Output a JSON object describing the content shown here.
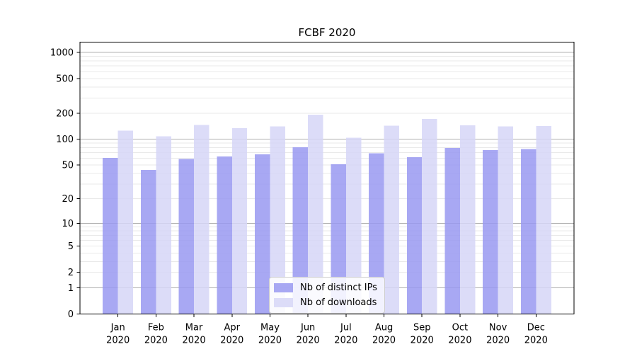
{
  "title": "FCBF 2020",
  "legend": {
    "items": [
      {
        "label": "Nb of distinct IPs"
      },
      {
        "label": "Nb of downloads"
      }
    ]
  },
  "chart_data": {
    "type": "bar",
    "title": "FCBF 2020",
    "categories": [
      "Jan",
      "Feb",
      "Mar",
      "Apr",
      "May",
      "Jun",
      "Jul",
      "Aug",
      "Sep",
      "Oct",
      "Nov",
      "Dec"
    ],
    "category_year": "2020",
    "series": [
      {
        "name": "Nb of distinct IPs",
        "color": "#9999f1",
        "values": [
          61,
          44,
          59,
          63,
          67,
          81,
          51,
          69,
          62,
          79,
          75,
          77
        ]
      },
      {
        "name": "Nb of downloads",
        "color": "#d6d6f7",
        "values": [
          126,
          108,
          146,
          134,
          141,
          193,
          104,
          143,
          172,
          145,
          141,
          142
        ]
      }
    ],
    "yscale": "log1p",
    "y_ticks": [
      0,
      1,
      2,
      5,
      10,
      20,
      50,
      100,
      200,
      500,
      1000
    ],
    "ylim": [
      0,
      1300
    ],
    "grid": true,
    "grid_major_color": "#b0b0b0",
    "grid_minor_color": "#e9e9e9",
    "bar_opacity": 0.85,
    "legend_position": "lower center"
  }
}
